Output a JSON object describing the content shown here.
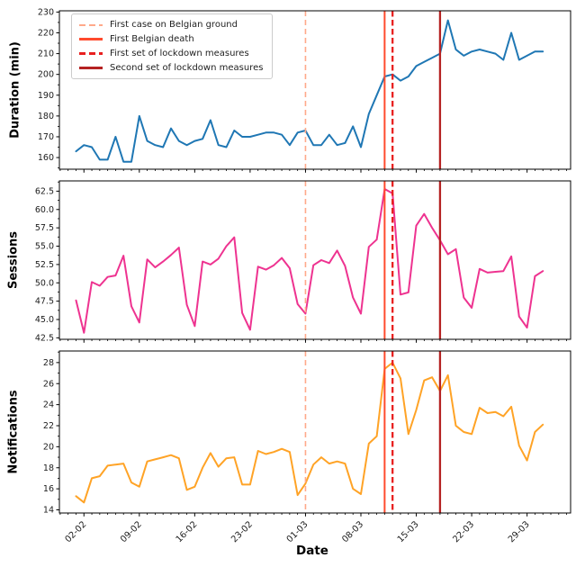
{
  "figure": {
    "xlabel": "Date",
    "x": {
      "tick_labels": [
        "02-02",
        "09-02",
        "16-02",
        "23-02",
        "01-03",
        "08-03",
        "15-03",
        "22-03",
        "29-03"
      ],
      "tick_indices": [
        1,
        8,
        15,
        22,
        29,
        36,
        43,
        50,
        57
      ],
      "n_points": 60,
      "xlim": [
        -2.1,
        62.5
      ],
      "minor_unit_days": 1,
      "date_range": "01-02 to 31-03"
    }
  },
  "legend": {
    "items": [
      {
        "key": "first-case",
        "label": "First case on Belgian ground",
        "color": "#ffa98a",
        "dash": "6 4",
        "lw": 1.6
      },
      {
        "key": "first-death",
        "label": "First Belgian death",
        "color": "#ff4a2d",
        "dash": null,
        "lw": 2
      },
      {
        "key": "lockdown-1",
        "label": "First set of lockdown measures",
        "color": "#e8201f",
        "dash": "6.5 3.5",
        "lw": 2.3
      },
      {
        "key": "lockdown-2",
        "label": "Second set of lockdown measures",
        "color": "#b52222",
        "dash": null,
        "lw": 2.3
      }
    ]
  },
  "events": [
    {
      "key": "first-case",
      "label": "First case on Belgian ground",
      "date": "01-03",
      "index": 29,
      "color": "#ffa98a",
      "dash": "6 4",
      "lw": 1.6
    },
    {
      "key": "first-death",
      "label": "First Belgian death",
      "date": "11-03",
      "index": 39,
      "color": "#ff4a2d",
      "dash": null,
      "lw": 2
    },
    {
      "key": "lockdown-1",
      "label": "First set of lockdown measures",
      "date": "12-03",
      "index": 40,
      "color": "#e8201f",
      "dash": "6.5 3.5",
      "lw": 2.3
    },
    {
      "key": "lockdown-2",
      "label": "Second set of lockdown measures",
      "date": "18-03",
      "index": 46,
      "color": "#b52222",
      "dash": null,
      "lw": 2.3
    }
  ],
  "chart_data": [
    {
      "type": "line",
      "id": "duration",
      "ylabel": "Duration (min)",
      "color": "#1f77b4",
      "ylim": [
        154.4,
        230.6
      ],
      "ytick_values": [
        160,
        170,
        180,
        190,
        200,
        210,
        220,
        230
      ],
      "ytick_labels": [
        "160",
        "170",
        "180",
        "190",
        "200",
        "210",
        "220",
        "230"
      ],
      "values": [
        163,
        166,
        165,
        159,
        159,
        170,
        158,
        158,
        180,
        168,
        166,
        165,
        174,
        168,
        166,
        168,
        169,
        178,
        166,
        165,
        173,
        170,
        170,
        171,
        172,
        172,
        171,
        166,
        172,
        173,
        166,
        166,
        171,
        166,
        167,
        175,
        165,
        181,
        190,
        199,
        200,
        197,
        199,
        204,
        206,
        208,
        210,
        226,
        212,
        209,
        211,
        212,
        211,
        210,
        207,
        220,
        207,
        209,
        211,
        211
      ]
    },
    {
      "type": "line",
      "id": "sessions",
      "ylabel": "Sessions",
      "color": "#ee3390",
      "ylim": [
        42.3,
        63.9
      ],
      "ytick_values": [
        42.5,
        45.0,
        47.5,
        50.0,
        52.5,
        55.0,
        57.5,
        60.0,
        62.5
      ],
      "ytick_labels": [
        "42.5",
        "45.0",
        "47.5",
        "50.0",
        "52.5",
        "55.0",
        "57.5",
        "60.0",
        "62.5"
      ],
      "values": [
        47.6,
        43.2,
        50.1,
        49.6,
        50.8,
        51.0,
        53.7,
        46.8,
        44.6,
        53.2,
        52.1,
        52.9,
        53.8,
        54.8,
        47.0,
        44.1,
        52.9,
        52.5,
        53.3,
        55.0,
        56.2,
        45.9,
        43.6,
        52.2,
        51.8,
        52.4,
        53.4,
        52.0,
        47.1,
        45.8,
        52.4,
        53.1,
        52.7,
        54.4,
        52.3,
        48.0,
        45.8,
        54.9,
        55.9,
        62.8,
        62.2,
        48.4,
        48.7,
        57.8,
        59.4,
        57.5,
        55.8,
        53.9,
        54.6,
        48.0,
        46.6,
        51.9,
        51.4,
        51.5,
        51.6,
        53.6,
        45.4,
        43.9,
        50.9,
        51.6
      ]
    },
    {
      "type": "line",
      "id": "notifications",
      "ylabel": "Notifications",
      "color": "#ffa326",
      "ylim": [
        13.7,
        29.1
      ],
      "ytick_values": [
        14,
        16,
        18,
        20,
        22,
        24,
        26,
        28
      ],
      "ytick_labels": [
        "14",
        "16",
        "18",
        "20",
        "22",
        "24",
        "26",
        "28"
      ],
      "values": [
        15.3,
        14.7,
        17.0,
        17.2,
        18.2,
        18.3,
        18.4,
        16.6,
        16.2,
        18.6,
        18.8,
        19.0,
        19.2,
        18.9,
        15.9,
        16.2,
        18.0,
        19.4,
        18.1,
        18.9,
        19.0,
        16.4,
        16.4,
        19.6,
        19.3,
        19.5,
        19.8,
        19.5,
        15.4,
        16.5,
        18.3,
        19.0,
        18.4,
        18.6,
        18.4,
        16.0,
        15.5,
        20.3,
        21.0,
        27.4,
        28.0,
        26.5,
        21.2,
        23.5,
        26.3,
        26.6,
        25.3,
        26.8,
        22.0,
        21.4,
        21.2,
        23.7,
        23.2,
        23.3,
        22.9,
        23.8,
        20.1,
        18.7,
        21.4,
        22.1
      ]
    }
  ]
}
